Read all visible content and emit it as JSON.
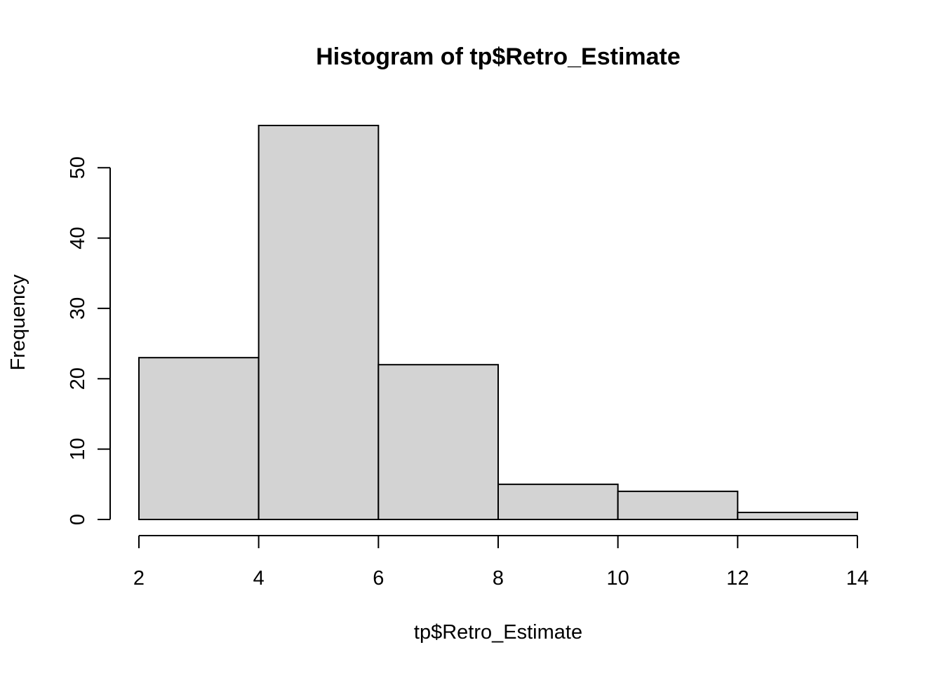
{
  "chart_data": {
    "type": "bar",
    "title": "Histogram of tp$Retro_Estimate",
    "xlabel": "tp$Retro_Estimate",
    "ylabel": "Frequency",
    "bins": [
      {
        "from": 2,
        "to": 4,
        "count": 23
      },
      {
        "from": 4,
        "to": 6,
        "count": 56
      },
      {
        "from": 6,
        "to": 8,
        "count": 22
      },
      {
        "from": 8,
        "to": 10,
        "count": 5
      },
      {
        "from": 10,
        "to": 12,
        "count": 4
      },
      {
        "from": 12,
        "to": 14,
        "count": 1
      }
    ],
    "xticks": [
      2,
      4,
      6,
      8,
      10,
      12,
      14
    ],
    "yticks": [
      0,
      10,
      20,
      30,
      40,
      50
    ],
    "xlim": [
      2,
      14
    ],
    "ylim": [
      0,
      56
    ],
    "grid": false,
    "legend": "none",
    "colors": {
      "bar_fill": "#d3d3d3",
      "bar_stroke": "#000000"
    }
  }
}
